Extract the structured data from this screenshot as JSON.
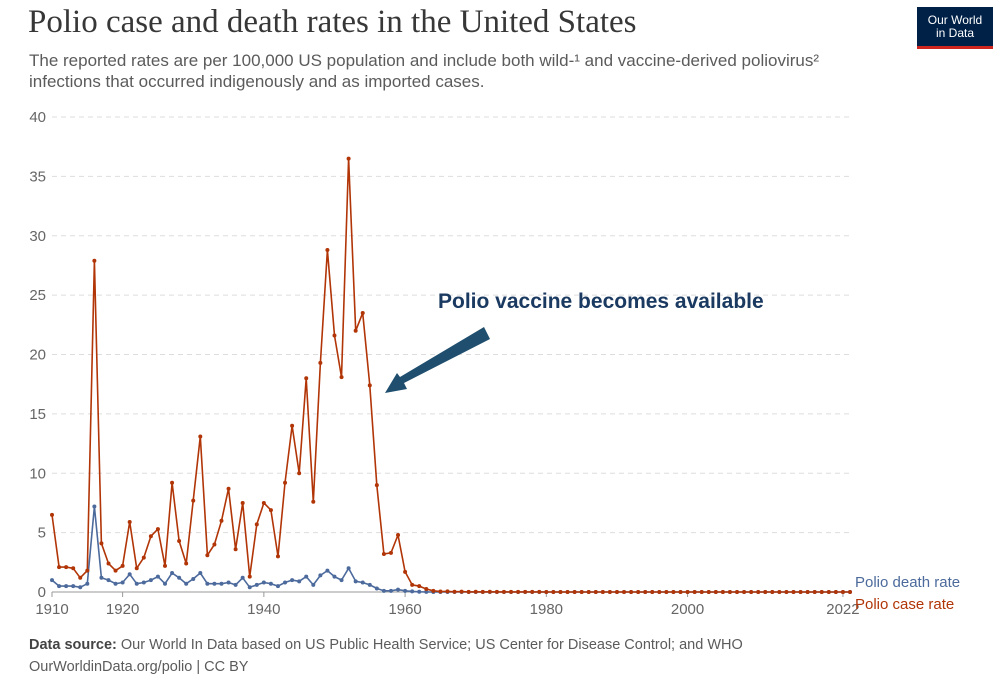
{
  "header": {
    "title": "Polio case and death rates in the United States",
    "subtitle_line1": "The reported rates are per 100,000 US population and include both wild-¹ and vaccine-derived poliovirus²",
    "subtitle_line2": "infections that occurred indigenously and as imported cases.",
    "logo_line1": "Our World",
    "logo_line2": "in Data"
  },
  "footer": {
    "source_label": "Data source:",
    "source_text": "Our World In Data based on US Public Health Service; US Center for Disease Control; and WHO",
    "url_text": "OurWorldinData.org/polio | CC BY"
  },
  "annotation": {
    "text": "Polio vaccine becomes available"
  },
  "colors": {
    "case": "#b13507",
    "death": "#4c6a9c",
    "grid": "#dddddd",
    "arrow": "#1f4e6e"
  },
  "chart_data": {
    "type": "line",
    "title": "Polio case and death rates in the United States",
    "xlabel": "",
    "ylabel": "",
    "xlim": [
      1910,
      2023
    ],
    "ylim": [
      0,
      40
    ],
    "yticks": [
      0,
      5,
      10,
      15,
      20,
      25,
      30,
      35,
      40
    ],
    "xticks": [
      1910,
      1920,
      1940,
      1960,
      1980,
      2000,
      2022
    ],
    "grid": "horizontal dashed",
    "legend": "end labels at right",
    "series": [
      {
        "name": "Polio death rate",
        "color": "#4c6a9c",
        "x": [
          1910,
          1911,
          1912,
          1913,
          1914,
          1915,
          1916,
          1917,
          1918,
          1919,
          1920,
          1921,
          1922,
          1923,
          1924,
          1925,
          1926,
          1927,
          1928,
          1929,
          1930,
          1931,
          1932,
          1933,
          1934,
          1935,
          1936,
          1937,
          1938,
          1939,
          1940,
          1941,
          1942,
          1943,
          1944,
          1945,
          1946,
          1947,
          1948,
          1949,
          1950,
          1951,
          1952,
          1953,
          1954,
          1955,
          1956,
          1957,
          1958,
          1959,
          1960,
          1961,
          1962,
          1963,
          1964,
          1965,
          1966,
          1967,
          1968,
          1969,
          1970,
          1971,
          1972,
          1973,
          1974,
          1975,
          1976,
          1977,
          1978,
          1979,
          1980,
          1981,
          1982,
          1983,
          1984,
          1985,
          1986,
          1987,
          1988,
          1989,
          1990,
          1991,
          1992,
          1993,
          1994,
          1995,
          1996,
          1997,
          1998,
          1999,
          2000,
          2001,
          2002,
          2003,
          2004,
          2005,
          2006,
          2007,
          2008,
          2009,
          2010,
          2011,
          2012,
          2013,
          2014,
          2015,
          2016,
          2017,
          2018,
          2019,
          2020,
          2021,
          2022,
          2023
        ],
        "values": [
          1.0,
          0.5,
          0.5,
          0.5,
          0.4,
          0.7,
          7.2,
          1.2,
          1.0,
          0.7,
          0.8,
          1.5,
          0.7,
          0.8,
          1.0,
          1.3,
          0.7,
          1.6,
          1.2,
          0.7,
          1.1,
          1.6,
          0.7,
          0.7,
          0.7,
          0.8,
          0.6,
          1.2,
          0.4,
          0.6,
          0.8,
          0.7,
          0.5,
          0.8,
          1.0,
          0.9,
          1.3,
          0.6,
          1.4,
          1.8,
          1.3,
          1.0,
          2.0,
          0.9,
          0.8,
          0.6,
          0.3,
          0.1,
          0.1,
          0.2,
          0.1,
          0.05,
          0.02,
          0.01,
          0,
          0,
          0,
          0,
          0,
          0,
          0,
          0,
          0,
          0,
          0,
          0,
          0,
          0,
          0,
          0,
          0,
          0,
          0,
          0,
          0,
          0,
          0,
          0,
          0,
          0,
          0,
          0,
          0,
          0,
          0,
          0,
          0,
          0,
          0,
          0,
          0,
          0,
          0,
          0,
          0,
          0,
          0,
          0,
          0,
          0,
          0,
          0,
          0,
          0,
          0,
          0,
          0,
          0,
          0,
          0,
          0,
          0,
          0,
          0
        ]
      },
      {
        "name": "Polio case rate",
        "color": "#b13507",
        "x": [
          1910,
          1911,
          1912,
          1913,
          1914,
          1915,
          1916,
          1917,
          1918,
          1919,
          1920,
          1921,
          1922,
          1923,
          1924,
          1925,
          1926,
          1927,
          1928,
          1929,
          1930,
          1931,
          1932,
          1933,
          1934,
          1935,
          1936,
          1937,
          1938,
          1939,
          1940,
          1941,
          1942,
          1943,
          1944,
          1945,
          1946,
          1947,
          1948,
          1949,
          1950,
          1951,
          1952,
          1953,
          1954,
          1955,
          1956,
          1957,
          1958,
          1959,
          1960,
          1961,
          1962,
          1963,
          1964,
          1965,
          1966,
          1967,
          1968,
          1969,
          1970,
          1971,
          1972,
          1973,
          1974,
          1975,
          1976,
          1977,
          1978,
          1979,
          1980,
          1981,
          1982,
          1983,
          1984,
          1985,
          1986,
          1987,
          1988,
          1989,
          1990,
          1991,
          1992,
          1993,
          1994,
          1995,
          1996,
          1997,
          1998,
          1999,
          2000,
          2001,
          2002,
          2003,
          2004,
          2005,
          2006,
          2007,
          2008,
          2009,
          2010,
          2011,
          2012,
          2013,
          2014,
          2015,
          2016,
          2017,
          2018,
          2019,
          2020,
          2021,
          2022,
          2023
        ],
        "values": [
          6.5,
          2.1,
          2.1,
          2.0,
          1.2,
          1.8,
          27.9,
          4.1,
          2.4,
          1.8,
          2.2,
          5.9,
          2.0,
          2.9,
          4.7,
          5.3,
          2.2,
          9.2,
          4.3,
          2.4,
          7.7,
          13.1,
          3.1,
          4.0,
          6.0,
          8.7,
          3.6,
          7.5,
          1.3,
          5.7,
          7.5,
          6.9,
          3.0,
          9.2,
          14.0,
          10.0,
          18.0,
          7.6,
          19.3,
          28.8,
          21.6,
          18.1,
          36.5,
          22.0,
          23.5,
          17.4,
          9.0,
          3.2,
          3.3,
          4.8,
          1.7,
          0.6,
          0.5,
          0.25,
          0.1,
          0.04,
          0.05,
          0.02,
          0.03,
          0.01,
          0.02,
          0.01,
          0.02,
          0.01,
          0.01,
          0.01,
          0.01,
          0.01,
          0.01,
          0.01,
          0,
          0,
          0,
          0,
          0,
          0,
          0,
          0,
          0,
          0,
          0,
          0,
          0,
          0,
          0,
          0,
          0,
          0,
          0,
          0,
          0,
          0,
          0,
          0,
          0,
          0,
          0,
          0,
          0,
          0,
          0,
          0,
          0,
          0,
          0,
          0,
          0,
          0,
          0,
          0,
          0,
          0,
          0,
          0
        ]
      }
    ]
  }
}
